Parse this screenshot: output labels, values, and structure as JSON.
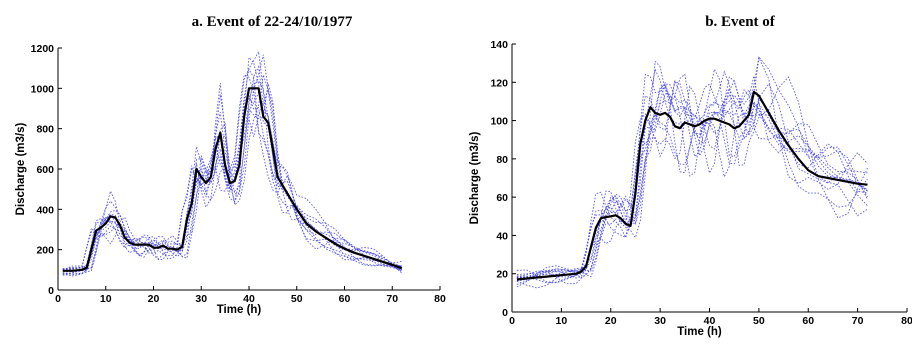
{
  "chart_data": [
    {
      "type": "line",
      "title": "a. Event of 22-24/10/1977",
      "xlabel": "Time (h)",
      "ylabel": "Discharge (m3/s)",
      "xlim": [
        0,
        80
      ],
      "ylim": [
        0,
        1200
      ],
      "xticks": [
        0,
        10,
        20,
        30,
        40,
        50,
        60,
        70,
        80
      ],
      "yticks": [
        0,
        200,
        400,
        600,
        800,
        1000,
        1200
      ],
      "grid": false,
      "x": [
        1,
        3,
        5,
        6,
        7,
        8,
        9,
        10,
        11,
        12,
        13,
        14,
        15,
        16,
        17,
        18,
        19,
        20,
        21,
        22,
        23,
        24,
        25,
        26,
        27,
        28,
        29,
        30,
        31,
        32,
        33,
        34,
        35,
        36,
        37,
        38,
        39,
        40,
        41,
        42,
        43,
        44,
        45,
        46,
        47,
        48,
        49,
        50,
        52,
        54,
        56,
        58,
        60,
        62,
        64,
        66,
        68,
        70,
        72
      ],
      "series": [
        {
          "values": [
            95,
            95,
            100,
            110,
            200,
            295,
            310,
            330,
            365,
            360,
            320,
            260,
            235,
            225,
            225,
            225,
            225,
            210,
            210,
            220,
            205,
            205,
            200,
            215,
            350,
            430,
            600,
            560,
            530,
            560,
            700,
            780,
            620,
            530,
            540,
            620,
            860,
            1000,
            1000,
            1000,
            860,
            830,
            700,
            560,
            520,
            480,
            440,
            400,
            330,
            290,
            260,
            230,
            205,
            185,
            170,
            155,
            140,
            125,
            108
          ]
        }
      ],
      "ensemble_count": 12,
      "colors": {
        "observed": "#000000",
        "ensemble": "#3f3fe0"
      }
    },
    {
      "type": "line",
      "title": "b. Event of",
      "xlabel": "Time (h)",
      "ylabel": "Discharge (m3/s)",
      "xlim": [
        0,
        80
      ],
      "ylim": [
        0,
        140
      ],
      "xticks": [
        0,
        10,
        20,
        30,
        40,
        50,
        60,
        70,
        80
      ],
      "yticks": [
        0,
        20,
        40,
        60,
        80,
        100,
        120,
        140
      ],
      "grid": false,
      "x": [
        1,
        3,
        5,
        7,
        9,
        11,
        13,
        14,
        15,
        16,
        17,
        18,
        19,
        20,
        21,
        22,
        23,
        24,
        25,
        26,
        27,
        28,
        29,
        30,
        31,
        32,
        33,
        34,
        35,
        36,
        37,
        38,
        39,
        40,
        41,
        42,
        43,
        44,
        45,
        46,
        47,
        48,
        49,
        50,
        52,
        54,
        56,
        58,
        60,
        62,
        64,
        66,
        68,
        70,
        72
      ],
      "series": [
        {
          "values": [
            17,
            17.5,
            18,
            18.5,
            19,
            19.5,
            20,
            21,
            24,
            34,
            44,
            49,
            49.5,
            50,
            50.5,
            49,
            46,
            45,
            62,
            88,
            100,
            107,
            104,
            103,
            104,
            102,
            97,
            96,
            99,
            98,
            97,
            98,
            100,
            101,
            101,
            100,
            99,
            98,
            96,
            97,
            100,
            103,
            115,
            113,
            104,
            95,
            87,
            80,
            74,
            71,
            70,
            69,
            68,
            67,
            66.5
          ]
        }
      ],
      "ensemble_count": 12,
      "colors": {
        "observed": "#000000",
        "ensemble": "#3f3fe0"
      }
    }
  ]
}
